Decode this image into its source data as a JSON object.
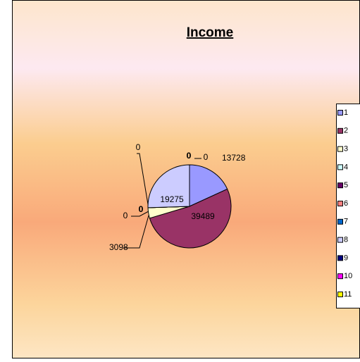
{
  "chart_data": {
    "type": "pie",
    "title": "Income",
    "categories": [
      "1",
      "2",
      "3",
      "4",
      "5",
      "6",
      "7",
      "8",
      "9",
      "10",
      "11"
    ],
    "values": [
      13728,
      39489,
      3098,
      0,
      0,
      0,
      0,
      19275,
      0,
      0,
      0
    ],
    "colors": [
      "#9999ff",
      "#993366",
      "#ffffcc",
      "#ccffff",
      "#660066",
      "#ff8080",
      "#0066cc",
      "#ccccff",
      "#000080",
      "#ff00ff",
      "#ffff00"
    ],
    "legend": "right"
  }
}
